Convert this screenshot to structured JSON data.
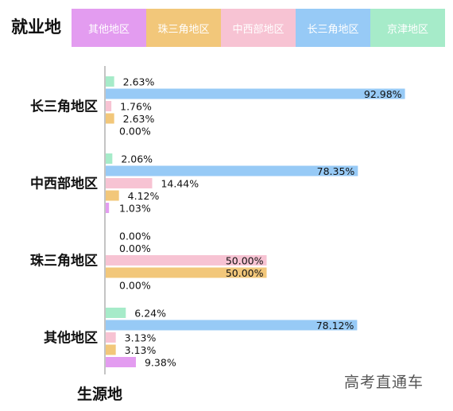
{
  "legend": {
    "title": "就业地",
    "placement": "top"
  },
  "watermark": "高考直通车",
  "colors": {
    "其他地区": "#e39cf0",
    "珠三角地区": "#f2c77a",
    "中西部地区": "#f7c3d3",
    "长三角地区": "#97caf6",
    "京津地区": "#a6ebc9"
  },
  "chart_data": {
    "type": "bar",
    "orientation": "horizontal",
    "grouping": "clustered",
    "xlim": [
      0,
      100
    ],
    "ylabel": "生源地",
    "categories": [
      "长三角地区",
      "中西部地区",
      "珠三角地区",
      "其他地区"
    ],
    "legend_order": [
      "其他地区",
      "珠三角地区",
      "中西部地区",
      "长三角地区",
      "京津地区"
    ],
    "series": [
      {
        "name": "京津地区",
        "values": [
          2.63,
          2.06,
          0.0,
          6.24
        ]
      },
      {
        "name": "长三角地区",
        "values": [
          92.98,
          78.35,
          0.0,
          78.12
        ]
      },
      {
        "name": "中西部地区",
        "values": [
          1.76,
          14.44,
          50.0,
          3.13
        ]
      },
      {
        "name": "珠三角地区",
        "values": [
          2.63,
          4.12,
          50.0,
          3.13
        ]
      },
      {
        "name": "其他地区",
        "values": [
          0.0,
          1.03,
          0.0,
          9.38
        ]
      }
    ],
    "value_labels": [
      [
        "2.63%",
        "92.98%",
        "1.76%",
        "2.63%",
        "0.00%"
      ],
      [
        "2.06%",
        "78.35%",
        "14.44%",
        "4.12%",
        "1.03%"
      ],
      [
        "0.00%",
        "0.00%",
        "50.00%",
        "50.00%",
        "0.00%"
      ],
      [
        "6.24%",
        "78.12%",
        "3.13%",
        "3.13%",
        "9.38%"
      ]
    ]
  }
}
